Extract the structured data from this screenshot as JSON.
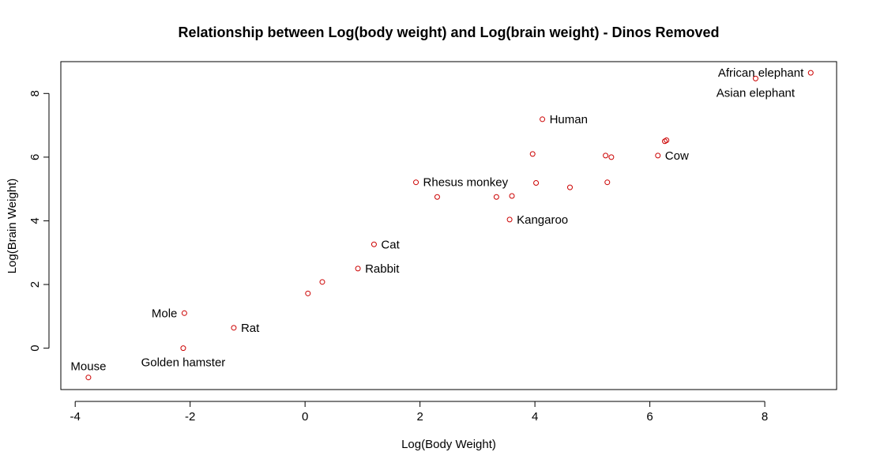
{
  "chart_data": {
    "type": "scatter",
    "title": "Relationship between Log(body weight) and Log(brain weight) - Dinos Removed",
    "xlabel": "Log(Body Weight)",
    "ylabel": "Log(Brain Weight)",
    "xlim": [
      -4.25,
      9.25
    ],
    "ylim": [
      -1.3,
      9.0
    ],
    "xticks": [
      -4,
      -2,
      0,
      2,
      4,
      6,
      8
    ],
    "yticks": [
      0,
      2,
      4,
      6,
      8
    ],
    "grid": false,
    "point_color": "#cc0000",
    "points": [
      {
        "x": -3.77,
        "y": -0.92,
        "label": "Mouse",
        "pos": "above"
      },
      {
        "x": -2.12,
        "y": 0.0,
        "label": "Golden hamster",
        "pos": "below"
      },
      {
        "x": -2.1,
        "y": 1.1,
        "label": "Mole",
        "pos": "left"
      },
      {
        "x": -1.24,
        "y": 0.64,
        "label": "Rat",
        "pos": "right"
      },
      {
        "x": 0.05,
        "y": 1.72,
        "label": "",
        "pos": "right"
      },
      {
        "x": 0.3,
        "y": 2.08,
        "label": "",
        "pos": "right"
      },
      {
        "x": 0.92,
        "y": 2.5,
        "label": "Rabbit",
        "pos": "right"
      },
      {
        "x": 1.2,
        "y": 3.26,
        "label": "Cat",
        "pos": "right"
      },
      {
        "x": 1.93,
        "y": 5.21,
        "label": "Rhesus monkey",
        "pos": "right"
      },
      {
        "x": 2.3,
        "y": 4.75,
        "label": "",
        "pos": "right"
      },
      {
        "x": 3.33,
        "y": 4.75,
        "label": "",
        "pos": "right"
      },
      {
        "x": 3.6,
        "y": 4.78,
        "label": "",
        "pos": "right"
      },
      {
        "x": 3.56,
        "y": 4.04,
        "label": "Kangaroo",
        "pos": "right"
      },
      {
        "x": 3.96,
        "y": 6.1,
        "label": "",
        "pos": "right"
      },
      {
        "x": 4.02,
        "y": 5.19,
        "label": "",
        "pos": "right"
      },
      {
        "x": 4.13,
        "y": 7.19,
        "label": "Human",
        "pos": "right"
      },
      {
        "x": 4.61,
        "y": 5.05,
        "label": "",
        "pos": "right"
      },
      {
        "x": 5.23,
        "y": 6.05,
        "label": "",
        "pos": "right"
      },
      {
        "x": 5.26,
        "y": 5.21,
        "label": "",
        "pos": "right"
      },
      {
        "x": 5.33,
        "y": 6.0,
        "label": "",
        "pos": "right"
      },
      {
        "x": 6.14,
        "y": 6.05,
        "label": "Cow",
        "pos": "right"
      },
      {
        "x": 6.26,
        "y": 6.5,
        "label": "",
        "pos": "right"
      },
      {
        "x": 6.29,
        "y": 6.53,
        "label": "",
        "pos": "right"
      },
      {
        "x": 7.84,
        "y": 8.47,
        "label": "Asian elephant",
        "pos": "below"
      },
      {
        "x": 8.8,
        "y": 8.65,
        "label": "African elephant",
        "pos": "left"
      }
    ]
  }
}
